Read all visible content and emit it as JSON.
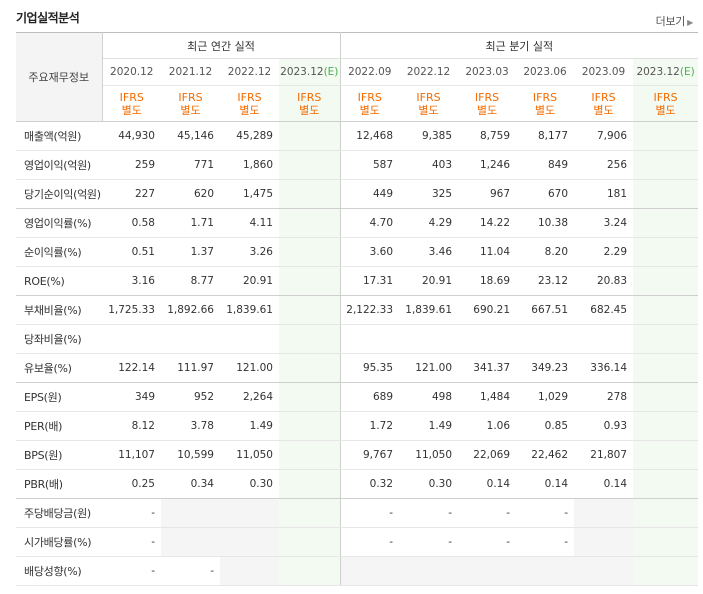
{
  "header": {
    "title": "기업실적분석",
    "more": "더보기"
  },
  "table": {
    "row_header": "주요재무정보",
    "groups": {
      "annual": "최근 연간 실적",
      "quarter": "최근 분기 실적"
    },
    "annual_dates": [
      "2020.12",
      "2021.12",
      "2022.12",
      "2023.12"
    ],
    "annual_est_suffix": "(E)",
    "quarter_dates": [
      "2022.09",
      "2022.12",
      "2023.03",
      "2023.06",
      "2023.09",
      "2023.12"
    ],
    "quarter_est_suffix": "(E)",
    "ifrs_top": "IFRS",
    "ifrs_bottom": "별도",
    "rows": [
      {
        "label": "매출액(억원)",
        "annual": [
          "44,930",
          "45,146",
          "45,289",
          ""
        ],
        "quarter": [
          "12,468",
          "9,385",
          "8,759",
          "8,177",
          "7,906",
          ""
        ]
      },
      {
        "label": "영업이익(억원)",
        "annual": [
          "259",
          "771",
          "1,860",
          ""
        ],
        "quarter": [
          "587",
          "403",
          "1,246",
          "849",
          "256",
          ""
        ]
      },
      {
        "label": "당기순이익(억원)",
        "annual": [
          "227",
          "620",
          "1,475",
          ""
        ],
        "quarter": [
          "449",
          "325",
          "967",
          "670",
          "181",
          ""
        ]
      },
      {
        "label": "영업이익률(%)",
        "annual": [
          "0.58",
          "1.71",
          "4.11",
          ""
        ],
        "quarter": [
          "4.70",
          "4.29",
          "14.22",
          "10.38",
          "3.24",
          ""
        ]
      },
      {
        "label": "순이익률(%)",
        "annual": [
          "0.51",
          "1.37",
          "3.26",
          ""
        ],
        "quarter": [
          "3.60",
          "3.46",
          "11.04",
          "8.20",
          "2.29",
          ""
        ]
      },
      {
        "label": "ROE(%)",
        "annual": [
          "3.16",
          "8.77",
          "20.91",
          ""
        ],
        "quarter": [
          "17.31",
          "20.91",
          "18.69",
          "23.12",
          "20.83",
          ""
        ]
      },
      {
        "label": "부채비율(%)",
        "annual": [
          "1,725.33",
          "1,892.66",
          "1,839.61",
          ""
        ],
        "quarter": [
          "2,122.33",
          "1,839.61",
          "690.21",
          "667.51",
          "682.45",
          ""
        ]
      },
      {
        "label": "당좌비율(%)",
        "annual": [
          "",
          "",
          "",
          ""
        ],
        "quarter": [
          "",
          "",
          "",
          "",
          "",
          ""
        ]
      },
      {
        "label": "유보율(%)",
        "annual": [
          "122.14",
          "111.97",
          "121.00",
          ""
        ],
        "quarter": [
          "95.35",
          "121.00",
          "341.37",
          "349.23",
          "336.14",
          ""
        ]
      },
      {
        "label": "EPS(원)",
        "annual": [
          "349",
          "952",
          "2,264",
          ""
        ],
        "quarter": [
          "689",
          "498",
          "1,484",
          "1,029",
          "278",
          ""
        ]
      },
      {
        "label": "PER(배)",
        "annual": [
          "8.12",
          "3.78",
          "1.49",
          ""
        ],
        "quarter": [
          "1.72",
          "1.49",
          "1.06",
          "0.85",
          "0.93",
          ""
        ]
      },
      {
        "label": "BPS(원)",
        "annual": [
          "11,107",
          "10,599",
          "11,050",
          ""
        ],
        "quarter": [
          "9,767",
          "11,050",
          "22,069",
          "22,462",
          "21,807",
          ""
        ]
      },
      {
        "label": "PBR(배)",
        "annual": [
          "0.25",
          "0.34",
          "0.30",
          ""
        ],
        "quarter": [
          "0.32",
          "0.30",
          "0.14",
          "0.14",
          "0.14",
          ""
        ]
      },
      {
        "label": "주당배당금(원)",
        "annual": [
          "-",
          "",
          "",
          ""
        ],
        "quarter": [
          "-",
          "-",
          "-",
          "-",
          "",
          ""
        ]
      },
      {
        "label": "시가배당률(%)",
        "annual": [
          "-",
          "",
          "",
          ""
        ],
        "quarter": [
          "-",
          "-",
          "-",
          "-",
          "",
          ""
        ]
      },
      {
        "label": "배당성향(%)",
        "annual": [
          "-",
          "-",
          "",
          ""
        ],
        "quarter": [
          "",
          "",
          "",
          "",
          "",
          ""
        ]
      }
    ]
  },
  "colors": {
    "ifrs": "#f36b00",
    "estimate_bg": "#f3faf1",
    "estimate_mark": "#4caf50"
  }
}
